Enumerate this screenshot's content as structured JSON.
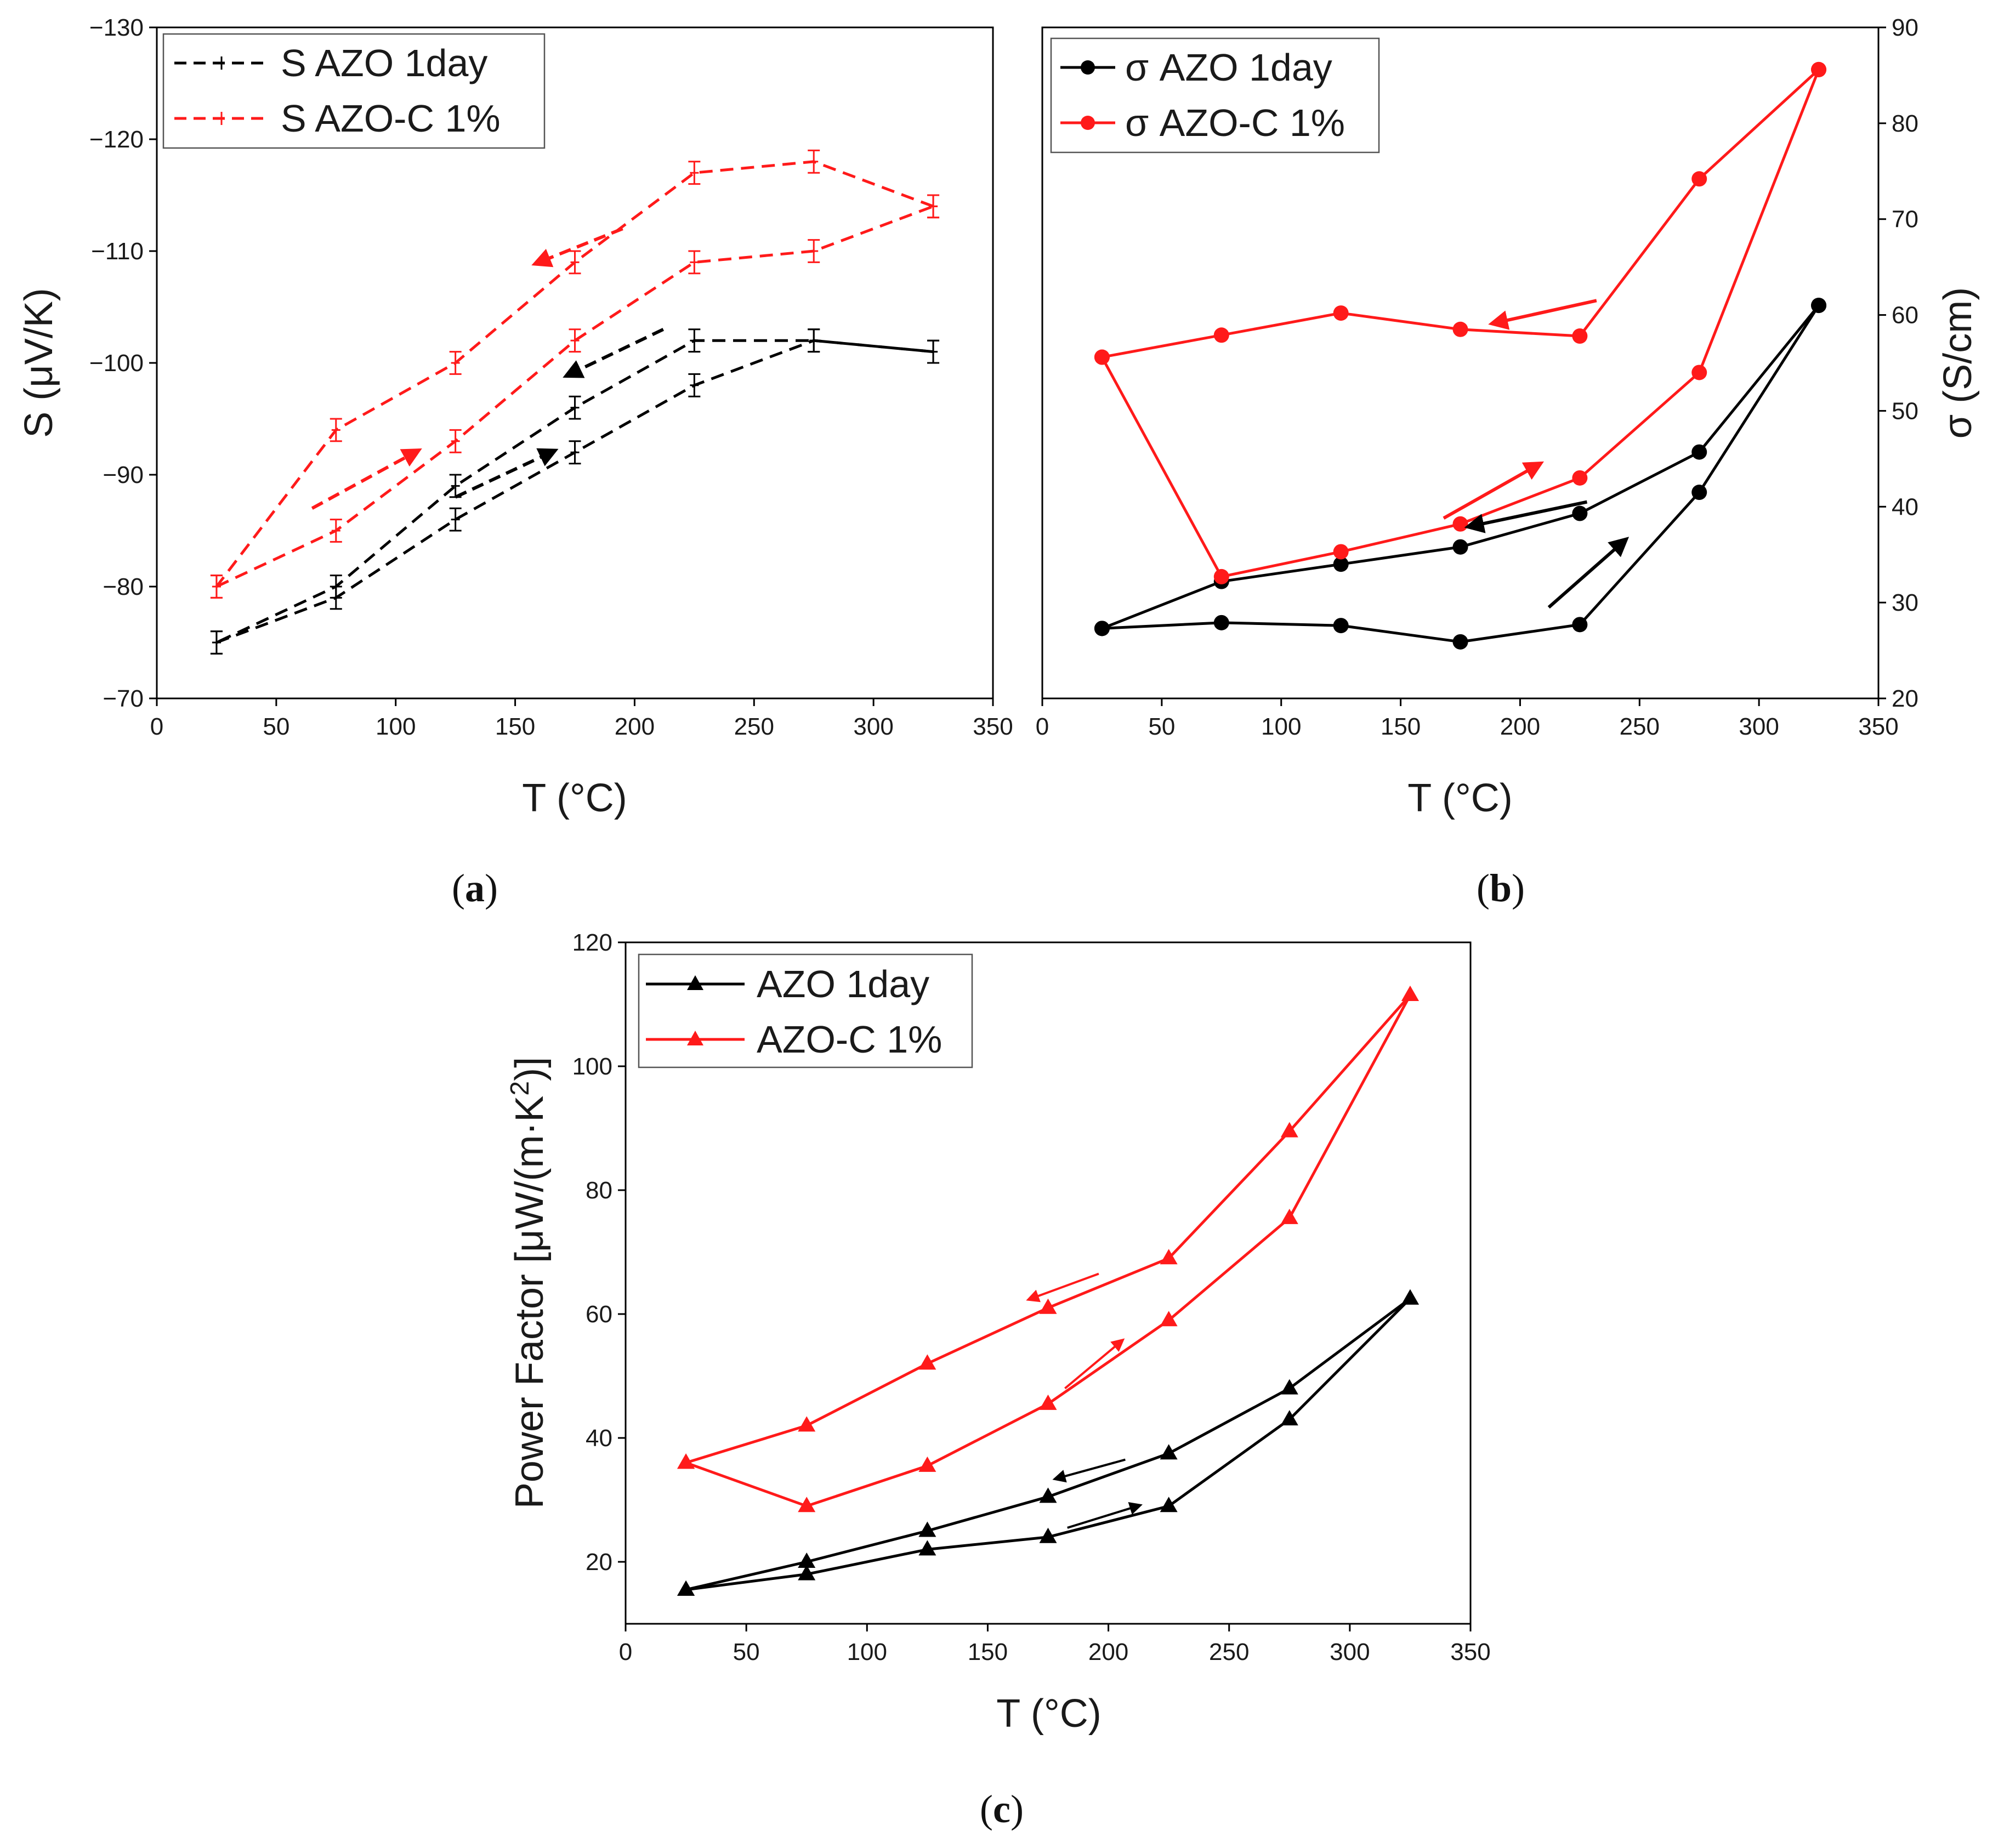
{
  "colors": {
    "azo": "#000000",
    "azoc": "#ff1a1a"
  },
  "panels": {
    "a": {
      "label_open": "(",
      "letter": "a",
      "label_close": ")"
    },
    "b": {
      "label_open": "(",
      "letter": "b",
      "label_close": ")"
    },
    "c": {
      "label_open": "(",
      "letter": "c",
      "label_close": ")"
    }
  },
  "chart_data": [
    {
      "id": "a",
      "type": "line",
      "xlabel": "T (°C)",
      "ylabel": "S (μV/K)",
      "xlim": [
        0,
        350
      ],
      "ylim": [
        -70,
        -130
      ],
      "xticks": [
        "0",
        "50",
        "100",
        "150",
        "200",
        "250",
        "300",
        "350"
      ],
      "yticks": [
        "−70",
        "−80",
        "−90",
        "−100",
        "−110",
        "−120",
        "−130"
      ],
      "line_style": "dashed",
      "marker": "errorbar",
      "error": 1,
      "legend": {
        "position": "top-left",
        "entries": [
          "S AZO 1day",
          "S AZO-C 1%"
        ]
      },
      "series": [
        {
          "name": "S AZO 1day (heating)",
          "color": "azo",
          "x": [
            25,
            75,
            125,
            175,
            225,
            275,
            325
          ],
          "y": [
            -75,
            -79,
            -86,
            -92,
            -98,
            -102,
            -101
          ]
        },
        {
          "name": "S AZO 1day (cooling)",
          "color": "azo",
          "x": [
            325,
            275,
            225,
            175,
            125,
            75,
            25
          ],
          "y": [
            -101,
            -102,
            -102,
            -96,
            -89,
            -80,
            -75
          ]
        },
        {
          "name": "S AZO-C 1% (heating)",
          "color": "azoc",
          "x": [
            25,
            75,
            125,
            175,
            225,
            275,
            325
          ],
          "y": [
            -80,
            -85,
            -93,
            -102,
            -109,
            -110,
            -114
          ]
        },
        {
          "name": "S AZO-C 1% (cooling)",
          "color": "azoc",
          "x": [
            325,
            275,
            225,
            175,
            125,
            75,
            25
          ],
          "y": [
            -114,
            -118,
            -117,
            -109,
            -100,
            -94,
            -80
          ]
        }
      ],
      "arrows": [
        {
          "color": "azoc",
          "from": [
            195,
            -112
          ],
          "to": [
            160,
            -109
          ]
        },
        {
          "color": "azoc",
          "from": [
            65,
            -87
          ],
          "to": [
            108,
            -92
          ]
        },
        {
          "color": "azo",
          "from": [
            212,
            -103
          ],
          "to": [
            173,
            -99
          ]
        },
        {
          "color": "azo",
          "from": [
            125,
            -88
          ],
          "to": [
            165,
            -92
          ]
        }
      ]
    },
    {
      "id": "b",
      "type": "line",
      "xlabel": "T (°C)",
      "ylabel": "σ (S/cm)",
      "xlim": [
        0,
        350
      ],
      "ylim": [
        20,
        90
      ],
      "xticks": [
        "0",
        "50",
        "100",
        "150",
        "200",
        "250",
        "300",
        "350"
      ],
      "yticks": [
        "20",
        "30",
        "40",
        "50",
        "60",
        "70",
        "80",
        "90"
      ],
      "y_axis_side": "right",
      "line_style": "solid",
      "marker": "circle",
      "legend": {
        "position": "top-left",
        "entries": [
          "σ AZO 1day",
          "σ AZO-C 1%"
        ]
      },
      "series": [
        {
          "name": "σ AZO 1day (heating)",
          "color": "azo",
          "x": [
            25,
            75,
            125,
            175,
            225,
            275,
            325
          ],
          "y": [
            27.3,
            27.9,
            27.6,
            25.9,
            27.7,
            41.5,
            61
          ]
        },
        {
          "name": "σ AZO 1day (cooling)",
          "color": "azo",
          "x": [
            325,
            275,
            225,
            175,
            125,
            75,
            25
          ],
          "y": [
            61,
            45.7,
            39.3,
            35.8,
            34,
            32.2,
            27.3
          ]
        },
        {
          "name": "σ AZO-C 1% (heating)",
          "color": "azoc",
          "x": [
            25,
            75,
            125,
            175,
            225,
            275,
            325
          ],
          "y": [
            55.6,
            32.7,
            35.3,
            38.2,
            43,
            54,
            85.6
          ]
        },
        {
          "name": "σ AZO-C 1% (cooling)",
          "color": "azoc",
          "x": [
            325,
            275,
            225,
            175,
            125,
            75,
            25
          ],
          "y": [
            85.6,
            74.2,
            57.8,
            58.5,
            60.2,
            57.9,
            55.6
          ]
        }
      ],
      "arrows": [
        {
          "color": "azoc",
          "from": [
            232,
            61.5
          ],
          "to": [
            190,
            59.2
          ]
        },
        {
          "color": "azoc",
          "from": [
            168,
            38.8
          ],
          "to": [
            207,
            44.3
          ]
        },
        {
          "color": "azo",
          "from": [
            228,
            40.5
          ],
          "to": [
            180,
            38
          ]
        },
        {
          "color": "azo",
          "from": [
            212,
            29.5
          ],
          "to": [
            243,
            36.3
          ]
        }
      ]
    },
    {
      "id": "c",
      "type": "line",
      "xlabel": "T (°C)",
      "ylabel_prefix": "Power Factor [μW/(m·K",
      "ylabel_sup": "2",
      "ylabel_suffix": ")]",
      "xlim": [
        0,
        350
      ],
      "ylim": [
        10,
        120
      ],
      "xticks": [
        "0",
        "50",
        "100",
        "150",
        "200",
        "250",
        "300",
        "350"
      ],
      "yticks": [
        "20",
        "40",
        "60",
        "80",
        "100",
        "120"
      ],
      "line_style": "solid",
      "marker": "triangle",
      "legend": {
        "position": "top-left",
        "entries": [
          "AZO 1day",
          "AZO-C 1%"
        ]
      },
      "series": [
        {
          "name": "AZO 1day (heating)",
          "color": "azo",
          "x": [
            25,
            75,
            125,
            175,
            225,
            275,
            325
          ],
          "y": [
            15.5,
            18,
            22,
            24,
            29,
            43,
            62.5
          ]
        },
        {
          "name": "AZO 1day (cooling)",
          "color": "azo",
          "x": [
            325,
            275,
            225,
            175,
            125,
            75,
            25
          ],
          "y": [
            62.5,
            48,
            37.5,
            30.5,
            25,
            20,
            15.5
          ]
        },
        {
          "name": "AZO-C 1% (heating)",
          "color": "azoc",
          "x": [
            25,
            75,
            125,
            175,
            225,
            275,
            325
          ],
          "y": [
            36,
            29,
            35.5,
            45.5,
            59,
            75.5,
            111.5
          ]
        },
        {
          "name": "AZO-C 1% (cooling)",
          "color": "azoc",
          "x": [
            325,
            275,
            225,
            175,
            125,
            75,
            25
          ],
          "y": [
            111.5,
            89.5,
            69,
            61,
            52,
            42,
            36
          ]
        }
      ],
      "arrows": [
        {
          "color": "azoc",
          "from": [
            196,
            66.5
          ],
          "to": [
            168,
            62.5
          ]
        },
        {
          "color": "azoc",
          "from": [
            182,
            48
          ],
          "to": [
            205,
            55.5
          ]
        },
        {
          "color": "azo",
          "from": [
            207,
            36.5
          ],
          "to": [
            179,
            33.5
          ]
        },
        {
          "color": "azo",
          "from": [
            183,
            25.5
          ],
          "to": [
            212,
            29
          ]
        }
      ]
    }
  ]
}
